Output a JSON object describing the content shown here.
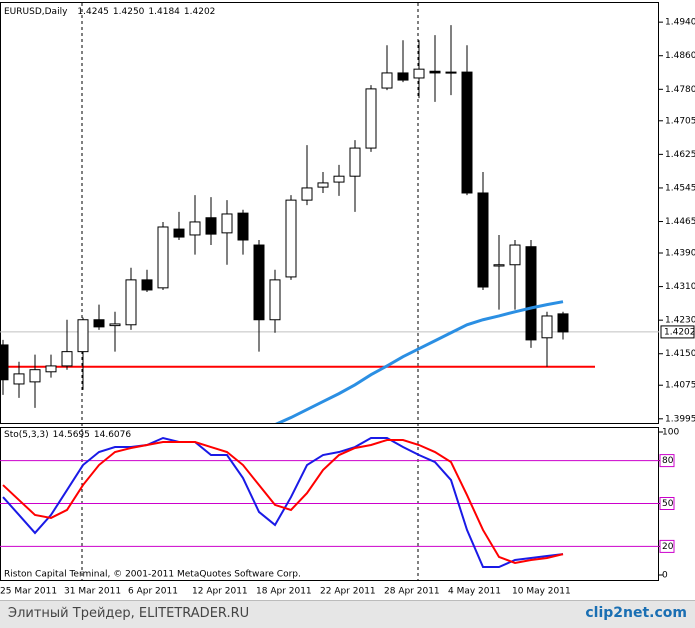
{
  "chart_data": [
    {
      "type": "candlestick",
      "title": "EURUSD,Daily",
      "header_ohlc": [
        "1.4245",
        "1.4250",
        "1.4184",
        "1.4202"
      ],
      "categories": [
        "25 Mar 2011",
        null,
        null,
        null,
        "31 Mar 2011",
        null,
        null,
        null,
        "6 Apr 2011",
        null,
        null,
        null,
        "12 Apr 2011",
        null,
        null,
        null,
        "18 Apr 2011",
        null,
        null,
        null,
        "22 Apr 2011",
        null,
        null,
        null,
        "28 Apr 2011",
        null,
        null,
        null,
        "4 May 2011",
        null,
        null,
        null,
        "10 May 2011",
        null,
        null,
        null
      ],
      "ohlc": [
        [
          1.4171,
          1.4183,
          1.4052,
          1.4088
        ],
        [
          1.4078,
          1.4131,
          1.4045,
          1.4102
        ],
        [
          1.4083,
          1.4148,
          1.4021,
          1.4112
        ],
        [
          1.4107,
          1.4148,
          1.4093,
          1.4121
        ],
        [
          1.4121,
          1.4231,
          1.4112,
          1.4155
        ],
        [
          1.4155,
          1.4236,
          1.4064,
          1.4231
        ],
        [
          1.4231,
          1.4267,
          1.4207,
          1.4214
        ],
        [
          1.4217,
          1.425,
          1.4155,
          1.4221
        ],
        [
          1.4219,
          1.4355,
          1.4207,
          1.4326
        ],
        [
          1.4326,
          1.435,
          1.4297,
          1.4302
        ],
        [
          1.4307,
          1.4464,
          1.4302,
          1.4452
        ],
        [
          1.4447,
          1.4488,
          1.4421,
          1.4428
        ],
        [
          1.4433,
          1.4528,
          1.4386,
          1.4464
        ],
        [
          1.4474,
          1.4523,
          1.4409,
          1.4435
        ],
        [
          1.4438,
          1.4516,
          1.4362,
          1.4483
        ],
        [
          1.4485,
          1.4493,
          1.4386,
          1.4421
        ],
        [
          1.4409,
          1.4421,
          1.4155,
          1.4231
        ],
        [
          1.4231,
          1.435,
          1.42,
          1.4326
        ],
        [
          1.4333,
          1.4528,
          1.4326,
          1.4516
        ],
        [
          1.4516,
          1.4647,
          1.4504,
          1.4545
        ],
        [
          1.4547,
          1.4583,
          1.4533,
          1.4557
        ],
        [
          1.4559,
          1.46,
          1.4526,
          1.4573
        ],
        [
          1.4573,
          1.4659,
          1.4488,
          1.464
        ],
        [
          1.464,
          1.479,
          1.4631,
          1.4781
        ],
        [
          1.4783,
          1.4885,
          1.4778,
          1.4819
        ],
        [
          1.4819,
          1.4897,
          1.4797,
          1.4802
        ],
        [
          1.4807,
          1.4897,
          1.4759,
          1.4828
        ],
        [
          1.4823,
          1.4909,
          1.475,
          1.4819
        ],
        [
          1.4821,
          1.4933,
          1.4766,
          1.4821
        ],
        [
          1.4821,
          1.4885,
          1.4528,
          1.4533
        ],
        [
          1.4533,
          1.4583,
          1.4302,
          1.4309
        ],
        [
          1.4359,
          1.4433,
          1.4255,
          1.4362
        ],
        [
          1.4362,
          1.4421,
          1.4255,
          1.4409
        ],
        [
          1.4405,
          1.4421,
          1.4164,
          1.4183
        ],
        [
          1.4188,
          1.425,
          1.4119,
          1.424
        ],
        [
          1.4245,
          1.425,
          1.4184,
          1.4202
        ]
      ],
      "ma": {
        "color": "#2b8fe3",
        "values": [
          null,
          null,
          null,
          null,
          null,
          null,
          null,
          null,
          null,
          null,
          null,
          null,
          null,
          null,
          null,
          null,
          null,
          1.3981,
          1.3998,
          1.4017,
          1.4036,
          1.4055,
          1.4076,
          1.41,
          1.4121,
          1.4143,
          1.4162,
          1.4181,
          1.42,
          1.4219,
          1.4231,
          1.424,
          1.425,
          1.4259,
          1.4267,
          1.4274
        ]
      },
      "hlines": [
        {
          "value": 1.4119,
          "color": "#ff0000"
        }
      ],
      "ylim": [
        1.3985,
        1.4988
      ],
      "yticks": [
        {
          "value": 1.494,
          "label": "1.4940"
        },
        {
          "value": 1.486,
          "label": "1.4860"
        },
        {
          "value": 1.478,
          "label": "1.4780"
        },
        1.4705,
        1.4625,
        1.4545,
        1.4465,
        {
          "value": 1.439,
          "label": "1.4390"
        },
        {
          "value": 1.431,
          "label": "1.4310"
        },
        {
          "value": 1.423,
          "label": "1.4230"
        },
        {
          "value": 1.415,
          "label": "1.4150"
        },
        1.4075,
        1.3995
      ]
    },
    {
      "type": "line",
      "title": "Sto(5,3,3)",
      "series": [
        {
          "color": "#1a1ae6",
          "values": [
            54.5,
            42.0,
            29.4,
            42.0,
            59.4,
            76.9,
            86.0,
            89.5,
            89.5,
            90.9,
            95.8,
            93.0,
            93.0,
            83.9,
            83.9,
            67.8,
            44.1,
            35.0,
            54.5,
            76.9,
            83.9,
            86.0,
            89.5,
            95.8,
            95.8,
            89.5,
            83.9,
            79.0,
            66.4,
            31.5,
            5.6,
            5.6,
            10.5,
            11.9,
            13.3,
            14.5695
          ]
        },
        {
          "color": "#ff0000",
          "values": [
            62.9,
            52.4,
            42.0,
            39.9,
            45.5,
            62.9,
            76.9,
            86.0,
            88.8,
            90.9,
            93.0,
            93.0,
            93.0,
            89.5,
            86.0,
            76.9,
            62.9,
            49.0,
            45.5,
            57.3,
            73.4,
            83.9,
            88.8,
            90.9,
            94.4,
            94.4,
            90.9,
            86.0,
            79.0,
            55.9,
            31.5,
            12.6,
            8.4,
            10.5,
            11.9,
            14.6076
          ]
        }
      ],
      "levels": [
        80,
        50,
        20
      ],
      "level_color": "#cc00cc",
      "ylim": [
        -3.5,
        102.8
      ],
      "yticks": [
        100,
        80,
        50,
        20,
        0
      ],
      "footnote": "Riston Capital Terminal, © 2001-2011 MetaQuotes Software Corp."
    }
  ],
  "footer": {
    "left": "Элитный Трейдер, ELITETRADER.RU",
    "right": "clip2net.com"
  }
}
